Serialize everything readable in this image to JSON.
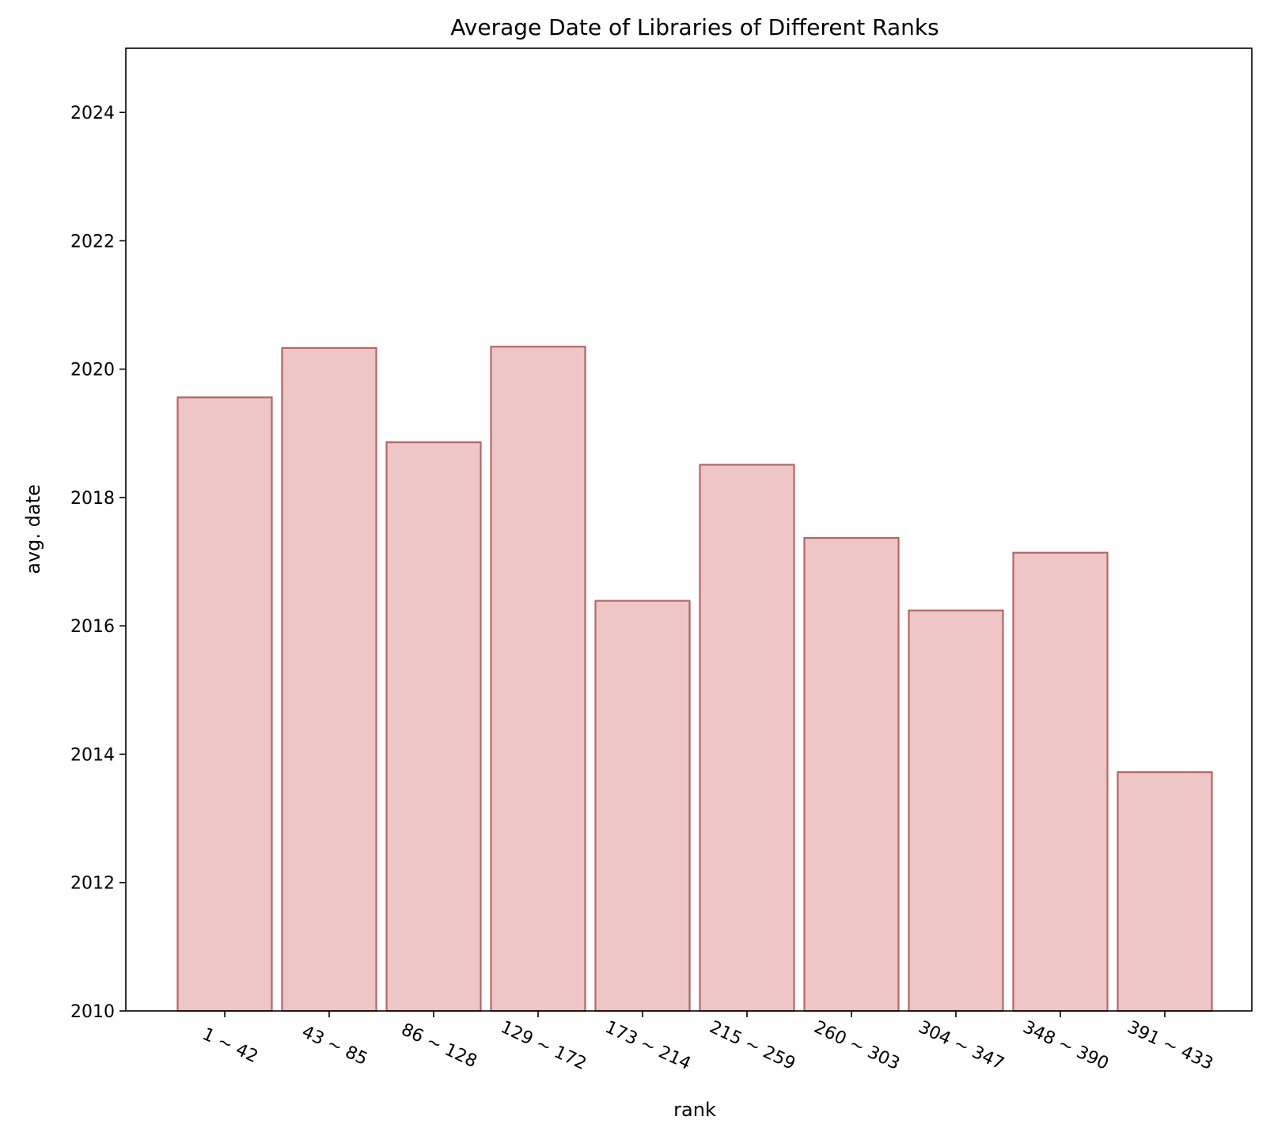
{
  "chart_data": {
    "type": "bar",
    "title": "Average Date of Libraries of Different Ranks",
    "xlabel": "rank",
    "ylabel": "avg. date",
    "categories": [
      "1 ~ 42",
      "43 ~ 85",
      "86 ~ 128",
      "129 ~ 172",
      "173 ~ 214",
      "215 ~ 259",
      "260 ~ 303",
      "304 ~ 347",
      "348 ~ 390",
      "391 ~ 433"
    ],
    "values": [
      2019.56,
      2020.33,
      2018.86,
      2020.35,
      2016.39,
      2018.51,
      2017.37,
      2016.24,
      2017.14,
      2013.72
    ],
    "ylim": [
      2010,
      2025
    ],
    "yticks": [
      2010,
      2012,
      2014,
      2016,
      2018,
      2020,
      2022,
      2024
    ],
    "grid": false,
    "bar_fill": "#eec6c6",
    "bar_edge": "#b86464"
  }
}
